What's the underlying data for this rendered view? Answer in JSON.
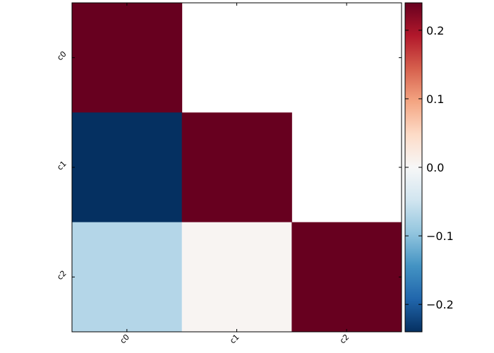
{
  "chart_data": {
    "type": "heatmap",
    "title": "",
    "xlabel": "",
    "ylabel": "",
    "x_categories": [
      "c0",
      "c1",
      "c2"
    ],
    "y_categories": [
      "c0",
      "c1",
      "c2"
    ],
    "matrix": [
      [
        0.25,
        null,
        null
      ],
      [
        -0.25,
        0.25,
        null
      ],
      [
        -0.07,
        0.005,
        0.25
      ]
    ],
    "colormap": "RdBu_r",
    "color_range": [
      -0.24,
      0.24
    ],
    "colorbar": {
      "ticks": [
        0.2,
        0.1,
        0.0,
        -0.1,
        -0.2
      ],
      "tick_labels": [
        "0.2",
        "0.1",
        "0.0",
        "−0.1",
        "−0.2"
      ]
    },
    "grid": false,
    "legend": "colorbar-right"
  }
}
